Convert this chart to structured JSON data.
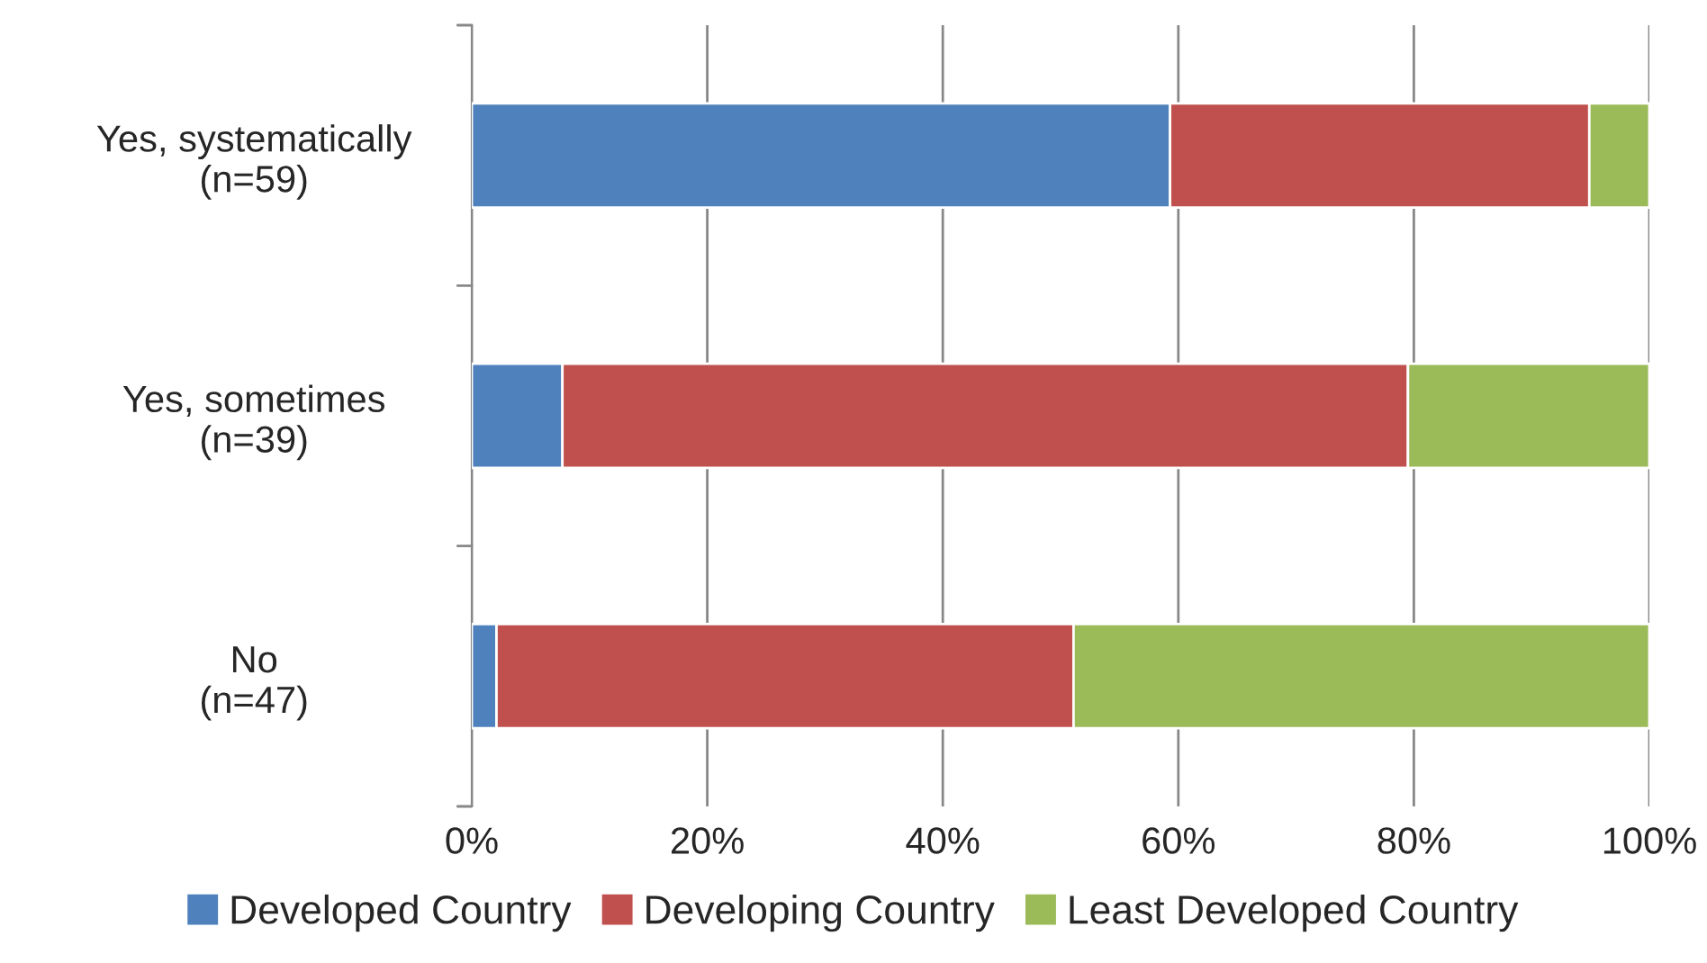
{
  "chart_data": {
    "type": "bar",
    "orientation": "horizontal",
    "stacked": true,
    "categories": [
      "Yes, systematically\n(n=59)",
      "Yes, sometimes\n(n=39)",
      "No\n(n=47)"
    ],
    "series": [
      {
        "name": "Developed Country",
        "color": "#4f81bd",
        "values": [
          59.3,
          7.7,
          2.1
        ]
      },
      {
        "name": "Developing Country",
        "color": "#c0504d",
        "values": [
          35.6,
          71.8,
          49.0
        ]
      },
      {
        "name": "Least Developed Country",
        "color": "#9bbb59",
        "values": [
          5.1,
          20.5,
          48.9
        ]
      }
    ],
    "xlim": [
      0,
      100
    ],
    "xticks": [
      {
        "value": 0,
        "label": "0%"
      },
      {
        "value": 20,
        "label": "20%"
      },
      {
        "value": 40,
        "label": "40%"
      },
      {
        "value": 60,
        "label": "60%"
      },
      {
        "value": 80,
        "label": "80%"
      },
      {
        "value": 100,
        "label": "100%"
      }
    ],
    "grid": "x",
    "legend": "bottom"
  }
}
